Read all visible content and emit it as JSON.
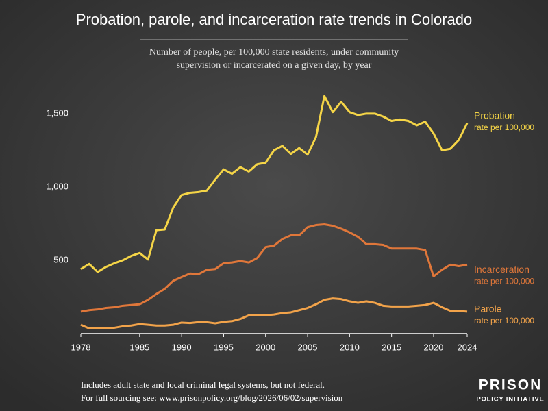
{
  "chart_data": {
    "type": "line",
    "title": "Probation, parole, and incarceration rate trends in Colorado",
    "subtitle": [
      "Number of people, per 100,000 state residents, under community",
      "supervision or incarcerated on a given day, by year"
    ],
    "x": [
      1978,
      1979,
      1980,
      1981,
      1982,
      1983,
      1984,
      1985,
      1986,
      1987,
      1988,
      1989,
      1990,
      1991,
      1992,
      1993,
      1994,
      1995,
      1996,
      1997,
      1998,
      1999,
      2000,
      2001,
      2002,
      2003,
      2004,
      2005,
      2006,
      2007,
      2008,
      2009,
      2010,
      2011,
      2012,
      2013,
      2014,
      2015,
      2016,
      2017,
      2018,
      2019,
      2020,
      2021,
      2022,
      2023,
      2024
    ],
    "xlim": [
      1978,
      2024
    ],
    "xticks": [
      1978,
      1985,
      1990,
      1995,
      2000,
      2005,
      2010,
      2015,
      2020,
      2024
    ],
    "ylim": [
      0,
      1700
    ],
    "yticks": [
      500,
      {
        "value": 1000,
        "label": "1,000"
      },
      {
        "value": 1500,
        "label": "1,500"
      }
    ],
    "grid": false,
    "end_label_note": "rate per 100,000",
    "series": [
      {
        "name": "Probation",
        "color": "#f5d547",
        "values": [
          440,
          475,
          420,
          455,
          480,
          500,
          530,
          550,
          505,
          705,
          710,
          860,
          945,
          960,
          965,
          975,
          1050,
          1120,
          1090,
          1135,
          1105,
          1155,
          1165,
          1250,
          1280,
          1225,
          1265,
          1220,
          1340,
          1620,
          1510,
          1580,
          1510,
          1490,
          1500,
          1500,
          1480,
          1450,
          1460,
          1450,
          1420,
          1445,
          1365,
          1250,
          1260,
          1320,
          1435
        ]
      },
      {
        "name": "Incarceration",
        "color": "#e0773a",
        "values": [
          150,
          160,
          165,
          175,
          180,
          190,
          195,
          200,
          230,
          270,
          305,
          360,
          385,
          410,
          405,
          435,
          440,
          480,
          485,
          495,
          485,
          515,
          590,
          600,
          645,
          670,
          670,
          725,
          740,
          745,
          735,
          715,
          690,
          660,
          610,
          610,
          605,
          580,
          580,
          580,
          580,
          570,
          390,
          435,
          470,
          460,
          470
        ]
      },
      {
        "name": "Parole",
        "color": "#f2a34a",
        "values": [
          60,
          35,
          35,
          40,
          40,
          50,
          55,
          65,
          60,
          55,
          55,
          60,
          75,
          72,
          78,
          78,
          70,
          80,
          85,
          100,
          125,
          125,
          125,
          130,
          140,
          145,
          160,
          175,
          200,
          230,
          240,
          235,
          220,
          210,
          220,
          210,
          190,
          185,
          185,
          185,
          190,
          195,
          210,
          180,
          155,
          155,
          150
        ]
      }
    ],
    "notes": [
      "Includes adult state and local criminal legal systems, but not federal.",
      "For full sourcing see: www.prisonpolicy.org/blog/2026/06/02/supervision"
    ],
    "logo": [
      "PRISON",
      "POLICY INITIATIVE"
    ]
  }
}
